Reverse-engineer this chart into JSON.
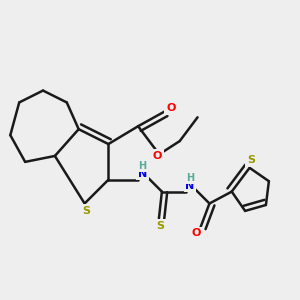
{
  "background_color": "#eeeeee",
  "bond_color": "#1a1a1a",
  "atom_colors": {
    "S": "#999900",
    "O": "#FF0000",
    "N": "#0000EE",
    "H": "#5aaa9a"
  },
  "figsize": [
    3.0,
    3.0
  ],
  "dpi": 100
}
